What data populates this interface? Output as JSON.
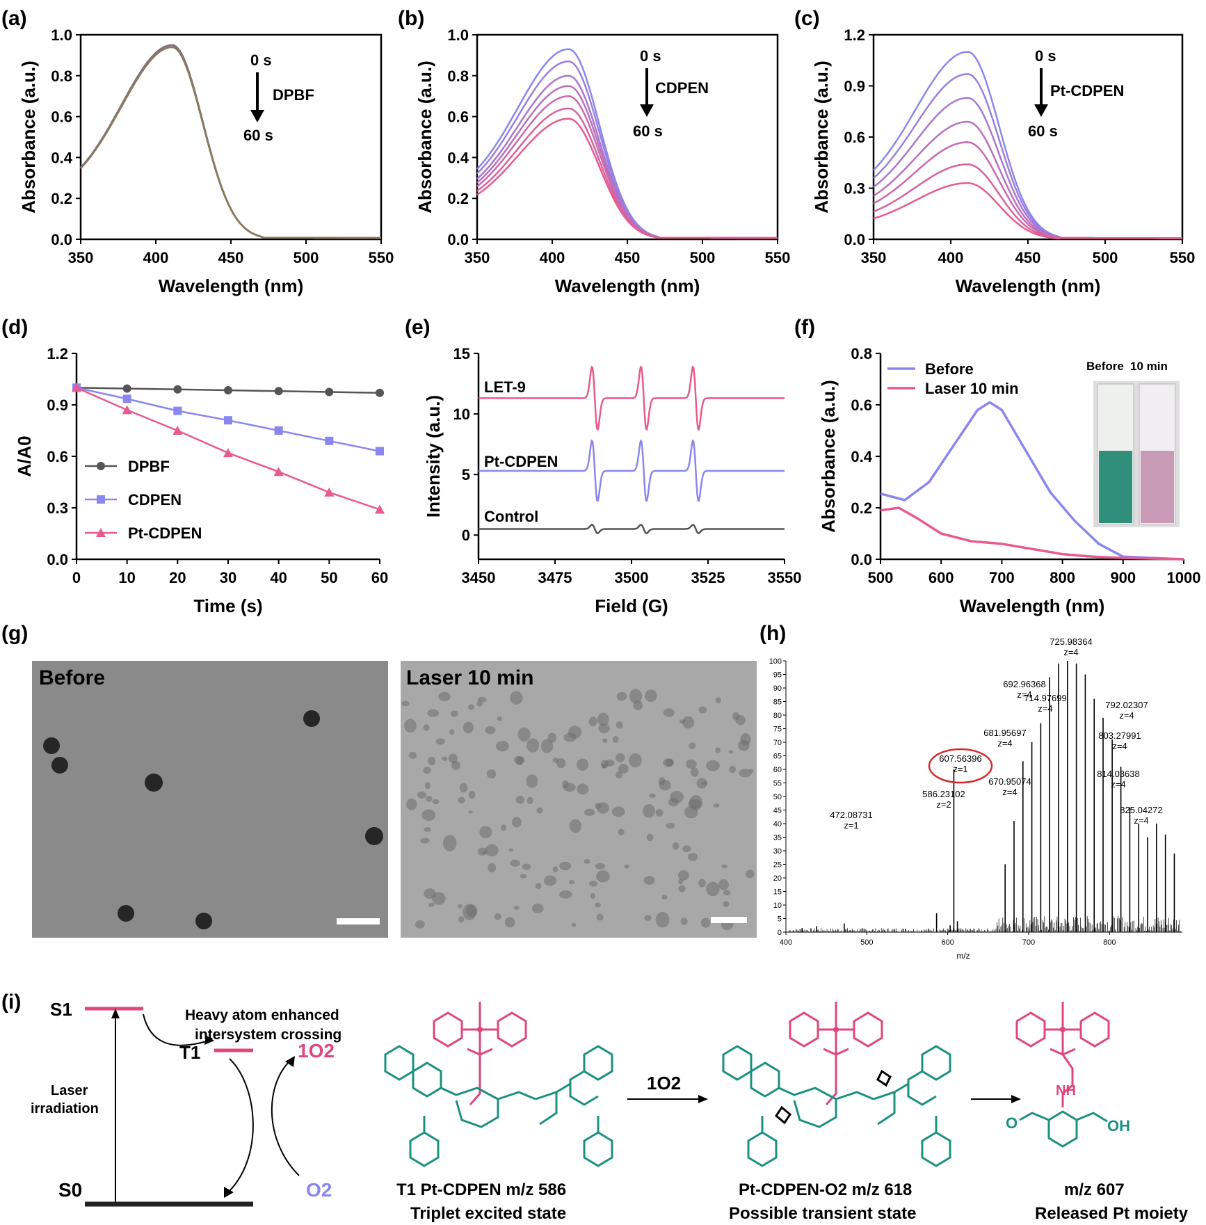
{
  "panels": {
    "a": {
      "label": "(a)",
      "arrow_top": "0 s",
      "arrow_bottom": "60 s",
      "arrow_name": "DPBF"
    },
    "b": {
      "label": "(b)",
      "arrow_top": "0 s",
      "arrow_bottom": "60 s",
      "arrow_name": "CDPEN"
    },
    "c": {
      "label": "(c)",
      "arrow_top": "0 s",
      "arrow_bottom": "60 s",
      "arrow_name": "Pt-CDPEN"
    },
    "d": {
      "label": "(d)"
    },
    "e": {
      "label": "(e)",
      "trace_labels": [
        "LET-9",
        "Pt-CDPEN",
        "Control"
      ]
    },
    "f": {
      "label": "(f)",
      "photo_labels": [
        "Before",
        "10 min"
      ]
    },
    "g": {
      "label": "(g)",
      "left_title": "Before",
      "right_title": "Laser 10 min"
    },
    "h": {
      "label": "(h)",
      "xlabel": "m/z",
      "peak_labels": [
        {
          "mz": "472.08731",
          "z": "z=1"
        },
        {
          "mz": "586.23102",
          "z": "z=2"
        },
        {
          "mz": "607.56396",
          "z": "z=1"
        },
        {
          "mz": "670.95074",
          "z": "z=4"
        },
        {
          "mz": "681.95697",
          "z": "z=4"
        },
        {
          "mz": "692.96368",
          "z": "z=4"
        },
        {
          "mz": "714.97699",
          "z": "z=4"
        },
        {
          "mz": "725.98364",
          "z": "z=4"
        },
        {
          "mz": "792.02307",
          "z": "z=4"
        },
        {
          "mz": "803.27991",
          "z": "z=4"
        },
        {
          "mz": "814.03638",
          "z": "z=4"
        },
        {
          "mz": "825.04272",
          "z": "z=4"
        }
      ]
    },
    "i": {
      "label": "(i)",
      "S1": "S1",
      "T1": "T1",
      "S0": "S0",
      "isc_line1": "Heavy atom enhanced",
      "isc_line2": "intersystem crossing",
      "laser_line1": "Laser",
      "laser_line2": "irradiation",
      "singlet_o2": "1O2",
      "o2": "O2",
      "arrow_reagent": "1O2",
      "mol1_line1": "T1 Pt-CDPEN m/z 586",
      "mol1_line2": "Triplet excited state",
      "mol2_line1": "Pt-CDPEN-O2 m/z 618",
      "mol2_line2": "Possible transient state",
      "mol3_line1": "m/z 607",
      "mol3_line2": "Released Pt moiety"
    }
  },
  "colors": {
    "blue": "#8a86f0",
    "pink": "#e85a8e",
    "grey": "#555555",
    "teal": "#1a9080",
    "magenta": "#e0457e"
  },
  "chart_data": [
    {
      "panel": "a",
      "type": "line",
      "xlabel": "Wavelength (nm)",
      "ylabel": "Absorbance (a.u.)",
      "xlim": [
        350,
        550
      ],
      "ylim": [
        0,
        1.0
      ],
      "xticks": [
        350,
        400,
        450,
        500,
        550
      ],
      "yticks": [
        0.0,
        0.2,
        0.4,
        0.6,
        0.8,
        1.0
      ],
      "peak_x": 411,
      "baseline_x": [
        350,
        400,
        450,
        500,
        550
      ],
      "peak_values_0_to_60s": [
        0.95,
        0.95,
        0.94,
        0.94,
        0.94,
        0.94,
        0.94
      ]
    },
    {
      "panel": "b",
      "type": "line",
      "xlabel": "Wavelength (nm)",
      "ylabel": "Absorbance (a.u.)",
      "xlim": [
        350,
        550
      ],
      "ylim": [
        0,
        1.0
      ],
      "xticks": [
        350,
        400,
        450,
        500,
        550
      ],
      "yticks": [
        0.0,
        0.2,
        0.4,
        0.6,
        0.8,
        1.0
      ],
      "peak_x": 411,
      "peak_values_0_to_60s": [
        0.93,
        0.87,
        0.8,
        0.75,
        0.7,
        0.64,
        0.59
      ]
    },
    {
      "panel": "c",
      "type": "line",
      "xlabel": "Wavelength (nm)",
      "ylabel": "Absorbance (a.u.)",
      "xlim": [
        350,
        550
      ],
      "ylim": [
        0,
        1.2
      ],
      "xticks": [
        350,
        400,
        450,
        500,
        550
      ],
      "yticks": [
        0.0,
        0.3,
        0.6,
        0.9,
        1.2
      ],
      "peak_x": 411,
      "peak_values_0_to_60s": [
        1.1,
        0.97,
        0.83,
        0.69,
        0.57,
        0.44,
        0.33
      ]
    },
    {
      "panel": "d",
      "type": "line",
      "xlabel": "Time (s)",
      "ylabel": "A/A0",
      "xlim": [
        0,
        60
      ],
      "ylim": [
        0,
        1.2
      ],
      "xticks": [
        0,
        10,
        20,
        30,
        40,
        50,
        60
      ],
      "yticks": [
        0.0,
        0.3,
        0.6,
        0.9,
        1.2
      ],
      "x": [
        0,
        10,
        20,
        30,
        40,
        50,
        60
      ],
      "series": [
        {
          "name": "DPBF",
          "marker": "circle",
          "values": [
            1.0,
            0.995,
            0.99,
            0.985,
            0.98,
            0.975,
            0.97
          ]
        },
        {
          "name": "CDPEN",
          "marker": "square",
          "values": [
            1.0,
            0.935,
            0.865,
            0.81,
            0.75,
            0.69,
            0.63
          ]
        },
        {
          "name": "Pt-CDPEN",
          "marker": "triangle",
          "values": [
            1.0,
            0.87,
            0.75,
            0.62,
            0.51,
            0.39,
            0.29
          ]
        }
      ]
    },
    {
      "panel": "e",
      "type": "line",
      "xlabel": "Field (G)",
      "ylabel": "Intensity (a.u.)",
      "xlim": [
        3450,
        3550
      ],
      "ylim": [
        -2,
        15
      ],
      "xticks": [
        3450,
        3475,
        3500,
        3525,
        3550
      ],
      "yticks": [
        0,
        5,
        10,
        15
      ],
      "line_centers": [
        3488,
        3504,
        3521
      ],
      "series": [
        {
          "name": "LET-9",
          "baseline": 11.3,
          "amplitude": 2.6
        },
        {
          "name": "Pt-CDPEN",
          "baseline": 5.3,
          "amplitude": 2.5
        },
        {
          "name": "Control",
          "baseline": 0.5,
          "amplitude": 0.35
        }
      ]
    },
    {
      "panel": "f",
      "type": "line",
      "xlabel": "Wavelength (nm)",
      "ylabel": "Absorbance (a.u.)",
      "xlim": [
        500,
        1000
      ],
      "ylim": [
        0,
        0.8
      ],
      "xticks": [
        500,
        600,
        700,
        800,
        900,
        1000
      ],
      "yticks": [
        0.0,
        0.2,
        0.4,
        0.6,
        0.8
      ],
      "legend_position": "top-left",
      "series": [
        {
          "name": "Before",
          "x": [
            500,
            540,
            580,
            620,
            660,
            680,
            700,
            740,
            780,
            820,
            860,
            900,
            1000
          ],
          "values": [
            0.255,
            0.23,
            0.3,
            0.44,
            0.58,
            0.61,
            0.58,
            0.42,
            0.26,
            0.15,
            0.06,
            0.01,
            0.0
          ]
        },
        {
          "name": "Laser 10 min",
          "x": [
            500,
            530,
            560,
            600,
            650,
            700,
            750,
            800,
            850,
            900,
            1000
          ],
          "values": [
            0.19,
            0.2,
            0.16,
            0.1,
            0.07,
            0.06,
            0.04,
            0.02,
            0.01,
            0.005,
            0.0
          ]
        }
      ]
    },
    {
      "panel": "h",
      "type": "bar",
      "xlabel": "m/z",
      "ylabel": "",
      "xlim": [
        400,
        890
      ],
      "ylim": [
        0,
        100
      ],
      "xticks": [
        400,
        500,
        600,
        700,
        800
      ],
      "yticks": [
        0,
        5,
        10,
        15,
        20,
        25,
        30,
        35,
        40,
        45,
        50,
        55,
        60,
        65,
        70,
        75,
        80,
        85,
        90,
        95,
        100
      ],
      "peaks": [
        {
          "x": 420,
          "y": 1.5
        },
        {
          "x": 438,
          "y": 2.2
        },
        {
          "x": 472.09,
          "y": 3.2
        },
        {
          "x": 548,
          "y": 1.2
        },
        {
          "x": 586.23,
          "y": 7.0
        },
        {
          "x": 603,
          "y": 2.5
        },
        {
          "x": 607.56,
          "y": 60.0
        },
        {
          "x": 612,
          "y": 4.0
        },
        {
          "x": 670.95,
          "y": 25.0
        },
        {
          "x": 681.96,
          "y": 41.0
        },
        {
          "x": 692.96,
          "y": 63.0
        },
        {
          "x": 703.97,
          "y": 70.0
        },
        {
          "x": 714.98,
          "y": 77.0
        },
        {
          "x": 725.98,
          "y": 94.0
        },
        {
          "x": 736.99,
          "y": 99.0
        },
        {
          "x": 748.0,
          "y": 100.0
        },
        {
          "x": 759.0,
          "y": 99.0
        },
        {
          "x": 770.01,
          "y": 95.0
        },
        {
          "x": 781.01,
          "y": 86.0
        },
        {
          "x": 792.02,
          "y": 79.0
        },
        {
          "x": 803.28,
          "y": 71.0
        },
        {
          "x": 814.04,
          "y": 61.0
        },
        {
          "x": 825.04,
          "y": 46.0
        },
        {
          "x": 836.05,
          "y": 40.0
        },
        {
          "x": 847.06,
          "y": 35.0
        },
        {
          "x": 858.06,
          "y": 40.0
        },
        {
          "x": 869.07,
          "y": 36.0
        },
        {
          "x": 880.08,
          "y": 29.0
        }
      ]
    }
  ]
}
